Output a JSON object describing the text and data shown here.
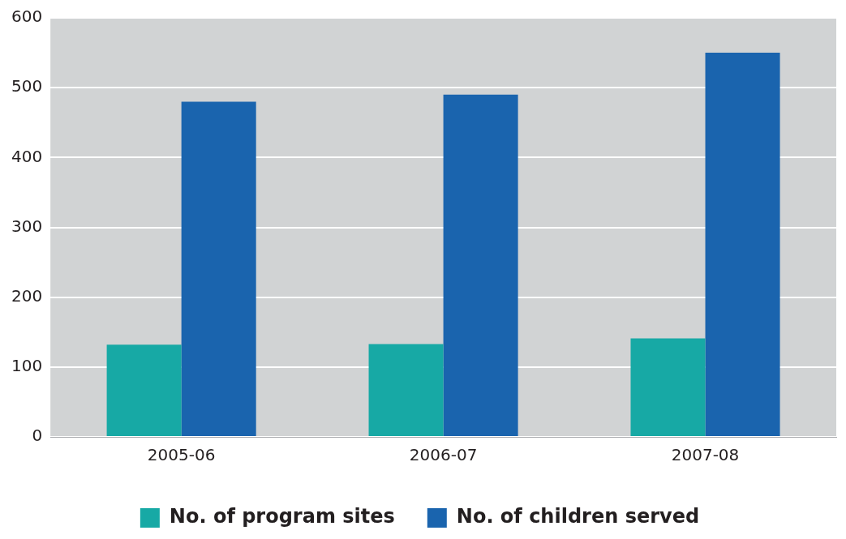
{
  "chart_data": {
    "type": "bar",
    "categories": [
      "2005-06",
      "2006-07",
      "2007-08"
    ],
    "series": [
      {
        "name": "No. of program sites",
        "color": "#17a9a5",
        "values": [
          132,
          133,
          141
        ]
      },
      {
        "name": "No. of children served",
        "color": "#1a64ae",
        "values": [
          480,
          490,
          550
        ]
      }
    ],
    "ylim": [
      0,
      600
    ],
    "yticks": [
      0,
      100,
      200,
      300,
      400,
      500,
      600
    ],
    "grid": "y",
    "legend": "bottom"
  }
}
